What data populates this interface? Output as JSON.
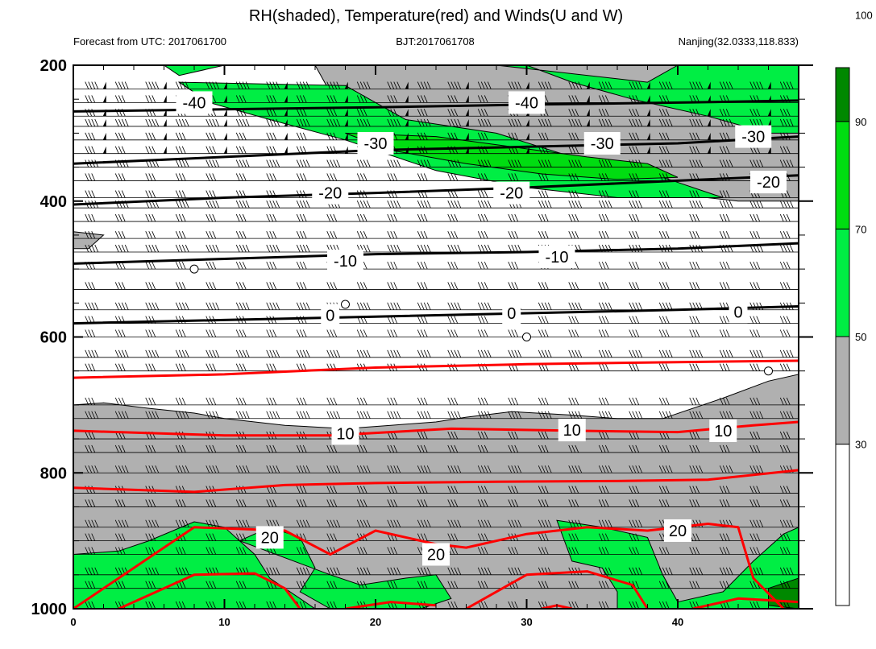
{
  "chart_data": {
    "type": "contour",
    "title": "RH(shaded), Temperature(red) and Winds(U and W)",
    "subtitle_left": "Forecast from UTC: 2017061700",
    "subtitle_center": "BJT:2017061708",
    "subtitle_right": "Nanjing(32.0333,118.833)",
    "x_ticks": [
      "0",
      "10",
      "20",
      "30",
      "40"
    ],
    "x_tick_values": [
      0,
      10,
      20,
      30,
      40
    ],
    "xlim": [
      0,
      48
    ],
    "y_ticks": [
      "200",
      "400",
      "600",
      "800",
      "1000"
    ],
    "y_tick_values": [
      200,
      400,
      600,
      800,
      1000
    ],
    "ylim": [
      200,
      1000
    ],
    "y_scale": "linear, inverted (pressure hPa)",
    "colorbar": {
      "labels": [
        "30",
        "50",
        "70",
        "90",
        "100"
      ],
      "label_values": [
        30,
        50,
        70,
        90,
        100
      ],
      "bins": [
        {
          "from": 0,
          "to": 30,
          "color": "#ffffff"
        },
        {
          "from": 30,
          "to": 50,
          "color": "#b0b0b0"
        },
        {
          "from": 50,
          "to": 70,
          "color": "#00ee44"
        },
        {
          "from": 70,
          "to": 90,
          "color": "#00dd11"
        },
        {
          "from": 90,
          "to": 100,
          "color": "#008800"
        }
      ]
    },
    "series": [
      {
        "kind": "rh_fill",
        "level": 30,
        "color": "#b0b0b0",
        "polygon": [
          [
            0,
            700
          ],
          [
            2,
            697
          ],
          [
            5,
            705
          ],
          [
            8,
            712
          ],
          [
            10,
            720
          ],
          [
            14,
            730
          ],
          [
            18,
            735
          ],
          [
            21,
            730
          ],
          [
            24,
            725
          ],
          [
            26,
            718
          ],
          [
            29,
            710
          ],
          [
            33,
            715
          ],
          [
            36,
            720
          ],
          [
            39,
            720
          ],
          [
            43,
            690
          ],
          [
            46,
            665
          ],
          [
            48,
            655
          ],
          [
            48,
            1000
          ],
          [
            0,
            1000
          ]
        ]
      },
      {
        "kind": "rh_fill",
        "level": 30,
        "color": "#b0b0b0",
        "polygon": [
          [
            0,
            200
          ],
          [
            16,
            200
          ],
          [
            17,
            240
          ],
          [
            19,
            280
          ],
          [
            22,
            300
          ],
          [
            26,
            320
          ],
          [
            30,
            345
          ],
          [
            35,
            375
          ],
          [
            40,
            390
          ],
          [
            44,
            400
          ],
          [
            48,
            400
          ],
          [
            48,
            200
          ]
        ]
      },
      {
        "kind": "rh_fill",
        "level": 30,
        "color": "#b0b0b0",
        "polygon": [
          [
            0,
            445
          ],
          [
            2,
            450
          ],
          [
            1,
            470
          ],
          [
            0,
            470
          ]
        ]
      },
      {
        "kind": "rh_fill",
        "level": 50,
        "color": "#00ee44",
        "polygon": [
          [
            0,
            920
          ],
          [
            3,
            915
          ],
          [
            5,
            900
          ],
          [
            8,
            872
          ],
          [
            10,
            880
          ],
          [
            12,
            920
          ],
          [
            13,
            955
          ],
          [
            16,
            1000
          ],
          [
            0,
            1000
          ]
        ]
      },
      {
        "kind": "rh_fill",
        "level": 50,
        "color": "#00ee44",
        "polygon": [
          [
            11,
            900
          ],
          [
            13,
            880
          ],
          [
            15,
            895
          ],
          [
            16,
            940
          ],
          [
            15,
            975
          ],
          [
            17,
            1000
          ],
          [
            23,
            1000
          ],
          [
            25,
            985
          ],
          [
            24,
            950
          ],
          [
            22,
            955
          ],
          [
            19,
            965
          ],
          [
            17,
            950
          ]
        ]
      },
      {
        "kind": "rh_fill",
        "level": 50,
        "color": "#00ee44",
        "polygon": [
          [
            32,
            870
          ],
          [
            35,
            880
          ],
          [
            38,
            895
          ],
          [
            39,
            950
          ],
          [
            40,
            990
          ],
          [
            43,
            975
          ],
          [
            45,
            930
          ],
          [
            47,
            890
          ],
          [
            48,
            880
          ],
          [
            48,
            1000
          ],
          [
            36,
            1000
          ],
          [
            36,
            975
          ],
          [
            35,
            940
          ],
          [
            33,
            930
          ]
        ]
      },
      {
        "kind": "rh_fill",
        "level": 50,
        "color": "#00ee44",
        "polygon": [
          [
            6,
            200
          ],
          [
            30,
            200
          ],
          [
            33,
            225
          ],
          [
            37,
            250
          ],
          [
            42,
            275
          ],
          [
            46,
            300
          ],
          [
            48,
            300
          ],
          [
            48,
            200
          ],
          [
            40,
            200
          ],
          [
            38,
            225
          ],
          [
            28,
            200
          ],
          [
            10,
            200
          ],
          [
            7,
            215
          ]
        ]
      },
      {
        "kind": "rh_fill",
        "level": 50,
        "color": "#00ee44",
        "polygon": [
          [
            7,
            225
          ],
          [
            18,
            230
          ],
          [
            22,
            280
          ],
          [
            28,
            300
          ],
          [
            33,
            335
          ],
          [
            39,
            365
          ],
          [
            43,
            395
          ],
          [
            36,
            395
          ],
          [
            30,
            380
          ],
          [
            24,
            355
          ],
          [
            18,
            310
          ],
          [
            13,
            280
          ],
          [
            9,
            255
          ]
        ]
      },
      {
        "kind": "rh_fill",
        "level": 70,
        "color": "#00dd11",
        "polygon": [
          [
            18,
            300
          ],
          [
            24,
            305
          ],
          [
            29,
            320
          ],
          [
            34,
            335
          ],
          [
            38,
            345
          ],
          [
            40,
            365
          ],
          [
            36,
            368
          ],
          [
            31,
            360
          ],
          [
            26,
            345
          ],
          [
            21,
            325
          ]
        ]
      },
      {
        "kind": "rh_fill",
        "level": 90,
        "color": "#008800",
        "polygon": [
          [
            46,
            970
          ],
          [
            48,
            955
          ],
          [
            48,
            1000
          ],
          [
            46,
            995
          ]
        ]
      },
      {
        "kind": "temp_contour",
        "label": "-40",
        "color": "#000000",
        "points": [
          [
            0,
            268
          ],
          [
            10,
            265
          ],
          [
            20,
            262
          ],
          [
            30,
            258
          ],
          [
            40,
            255
          ],
          [
            48,
            252
          ]
        ],
        "label_at": [
          [
            8,
            255
          ],
          [
            30,
            255
          ]
        ]
      },
      {
        "kind": "temp_contour",
        "label": "-30",
        "color": "#000000",
        "points": [
          [
            0,
            345
          ],
          [
            10,
            335
          ],
          [
            20,
            325
          ],
          [
            30,
            320
          ],
          [
            40,
            315
          ],
          [
            48,
            305
          ]
        ],
        "label_at": [
          [
            20,
            315
          ],
          [
            35,
            315
          ],
          [
            45,
            305
          ]
        ]
      },
      {
        "kind": "temp_contour",
        "label": "-20",
        "color": "#000000",
        "points": [
          [
            0,
            405
          ],
          [
            10,
            395
          ],
          [
            20,
            388
          ],
          [
            30,
            380
          ],
          [
            40,
            370
          ],
          [
            48,
            362
          ]
        ],
        "label_at": [
          [
            17,
            388
          ],
          [
            29,
            388
          ],
          [
            46,
            372
          ]
        ]
      },
      {
        "kind": "temp_contour",
        "label": "-10",
        "color": "#000000",
        "points": [
          [
            0,
            492
          ],
          [
            10,
            485
          ],
          [
            20,
            478
          ],
          [
            30,
            475
          ],
          [
            40,
            470
          ],
          [
            48,
            462
          ]
        ],
        "label_at": [
          [
            18,
            488
          ],
          [
            32,
            482
          ]
        ]
      },
      {
        "kind": "temp_contour",
        "label": "0",
        "color": "#000000",
        "points": [
          [
            0,
            580
          ],
          [
            10,
            575
          ],
          [
            20,
            570
          ],
          [
            30,
            565
          ],
          [
            40,
            560
          ],
          [
            48,
            555
          ]
        ],
        "label_at": [
          [
            17,
            568
          ],
          [
            29,
            565
          ],
          [
            44,
            563
          ]
        ]
      },
      {
        "kind": "temp_contour",
        "label": "",
        "color": "#ff0000",
        "points": [
          [
            0,
            660
          ],
          [
            10,
            655
          ],
          [
            20,
            645
          ],
          [
            30,
            640
          ],
          [
            40,
            637
          ],
          [
            48,
            635
          ]
        ],
        "label_at": []
      },
      {
        "kind": "temp_contour",
        "label": "10",
        "color": "#ff0000",
        "points": [
          [
            0,
            738
          ],
          [
            10,
            745
          ],
          [
            17,
            745
          ],
          [
            25,
            735
          ],
          [
            33,
            738
          ],
          [
            40,
            740
          ],
          [
            45,
            730
          ],
          [
            48,
            725
          ]
        ],
        "label_at": [
          [
            18,
            742
          ],
          [
            33,
            737
          ],
          [
            43,
            738
          ]
        ]
      },
      {
        "kind": "temp_contour",
        "label": "",
        "color": "#ff0000",
        "points": [
          [
            0,
            822
          ],
          [
            8,
            828
          ],
          [
            14,
            818
          ],
          [
            20,
            815
          ],
          [
            28,
            813
          ],
          [
            36,
            812
          ],
          [
            42,
            810
          ],
          [
            48,
            796
          ]
        ],
        "label_at": []
      },
      {
        "kind": "temp_contour",
        "label": "20",
        "color": "#ff0000",
        "points": [
          [
            0,
            1000
          ],
          [
            4,
            940
          ],
          [
            8,
            880
          ],
          [
            14,
            885
          ],
          [
            17,
            920
          ],
          [
            20,
            885
          ],
          [
            24,
            905
          ],
          [
            26,
            910
          ],
          [
            30,
            890
          ],
          [
            34,
            880
          ],
          [
            38,
            885
          ],
          [
            42,
            875
          ],
          [
            44,
            880
          ],
          [
            45,
            955
          ],
          [
            47,
            1000
          ]
        ],
        "label_at": [
          [
            13,
            895
          ],
          [
            24,
            920
          ],
          [
            40,
            885
          ]
        ]
      },
      {
        "kind": "temp_contour",
        "label": "",
        "color": "#ff0000",
        "points": [
          [
            3,
            1000
          ],
          [
            8,
            950
          ],
          [
            12,
            948
          ],
          [
            14,
            970
          ],
          [
            15,
            1000
          ]
        ],
        "label_at": []
      },
      {
        "kind": "temp_contour",
        "label": "",
        "color": "#ff0000",
        "points": [
          [
            26,
            1000
          ],
          [
            30,
            950
          ],
          [
            34,
            945
          ],
          [
            37,
            965
          ],
          [
            38,
            1000
          ]
        ],
        "label_at": []
      },
      {
        "kind": "temp_contour",
        "label": "",
        "color": "#ff0000",
        "points": [
          [
            18,
            1000
          ],
          [
            21,
            990
          ],
          [
            24,
            995
          ]
        ],
        "label_at": []
      },
      {
        "kind": "temp_contour",
        "label": "",
        "color": "#ff0000",
        "points": [
          [
            41,
            1000
          ],
          [
            44,
            985
          ],
          [
            48,
            990
          ]
        ],
        "label_at": []
      },
      {
        "kind": "temp_contour",
        "label": "",
        "color": "#ff0000",
        "points": [
          [
            31,
            1000
          ],
          [
            32,
            995
          ],
          [
            33,
            1000
          ]
        ],
        "label_at": []
      }
    ],
    "calm_markers": [
      [
        8,
        500
      ],
      [
        18,
        552
      ],
      [
        30,
        600
      ],
      [
        46,
        650
      ]
    ],
    "wind_rows": [
      {
        "level": 235,
        "pennant": true
      },
      {
        "level": 255,
        "pennant": true
      },
      {
        "level": 275,
        "pennant": true
      },
      {
        "level": 290,
        "pennant": true
      },
      {
        "level": 310,
        "pennant": true
      },
      {
        "level": 330,
        "pennant": true
      },
      {
        "level": 350,
        "pennant": false
      },
      {
        "level": 370,
        "pennant": false
      },
      {
        "level": 395,
        "pennant": false
      },
      {
        "level": 410,
        "pennant": false
      },
      {
        "level": 430,
        "pennant": false
      },
      {
        "level": 455,
        "pennant": false
      },
      {
        "level": 475,
        "pennant": false
      },
      {
        "level": 500,
        "pennant": false
      },
      {
        "level": 530,
        "pennant": false
      },
      {
        "level": 560,
        "pennant": false
      },
      {
        "level": 580,
        "pennant": false
      },
      {
        "level": 600,
        "pennant": false
      },
      {
        "level": 630,
        "pennant": false
      },
      {
        "level": 650,
        "pennant": false
      },
      {
        "level": 700,
        "pennant": false
      },
      {
        "level": 720,
        "pennant": false
      },
      {
        "level": 750,
        "pennant": false
      },
      {
        "level": 770,
        "pennant": false
      },
      {
        "level": 800,
        "pennant": false
      },
      {
        "level": 830,
        "pennant": false
      },
      {
        "level": 850,
        "pennant": false
      },
      {
        "level": 880,
        "pennant": false
      },
      {
        "level": 900,
        "pennant": false
      },
      {
        "level": 920,
        "pennant": false
      },
      {
        "level": 950,
        "pennant": false
      },
      {
        "level": 970,
        "pennant": false
      },
      {
        "level": 1000,
        "pennant": false
      }
    ],
    "wind_x": [
      1,
      3,
      5,
      7,
      9,
      11,
      13,
      15,
      17,
      19,
      21,
      23,
      25,
      27,
      29,
      31,
      33,
      35,
      37,
      39,
      41,
      43,
      45,
      47
    ]
  }
}
